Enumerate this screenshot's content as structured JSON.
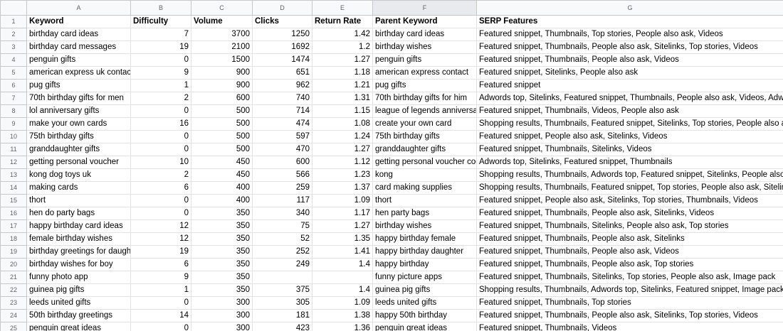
{
  "column_letters": [
    "A",
    "B",
    "C",
    "D",
    "E",
    "F",
    "G"
  ],
  "headers": [
    "Keyword",
    "Difficulty",
    "Volume",
    "Clicks",
    "Return Rate",
    "Parent Keyword",
    "SERP Features"
  ],
  "rows": [
    {
      "row": "2",
      "keyword": "birthday card ideas",
      "difficulty": "7",
      "volume": "3700",
      "clicks": "1250",
      "return_rate": "1.42",
      "parent": "birthday card ideas",
      "serp": "Featured snippet, Thumbnails, Top stories, People also ask, Videos"
    },
    {
      "row": "3",
      "keyword": "birthday card messages",
      "difficulty": "19",
      "volume": "2100",
      "clicks": "1692",
      "return_rate": "1.2",
      "parent": "birthday wishes",
      "serp": "Featured snippet, Thumbnails, People also ask, Sitelinks, Top stories, Videos"
    },
    {
      "row": "4",
      "keyword": "penguin gifts",
      "difficulty": "0",
      "volume": "1500",
      "clicks": "1474",
      "return_rate": "1.27",
      "parent": "penguin gifts",
      "serp": "Featured snippet, Thumbnails, People also ask, Videos"
    },
    {
      "row": "5",
      "keyword": "american express uk contact",
      "difficulty": "9",
      "volume": "900",
      "clicks": "651",
      "return_rate": "1.18",
      "parent": "american express contact",
      "serp": "Featured snippet, Sitelinks, People also ask"
    },
    {
      "row": "6",
      "keyword": "pug gifts",
      "difficulty": "1",
      "volume": "900",
      "clicks": "962",
      "return_rate": "1.21",
      "parent": "pug gifts",
      "serp": "Featured snippet"
    },
    {
      "row": "7",
      "keyword": "70th birthday gifts for men",
      "difficulty": "2",
      "volume": "600",
      "clicks": "740",
      "return_rate": "1.31",
      "parent": "70th birthday gifts for him",
      "serp": "Adwords top, Sitelinks, Featured snippet, Thumbnails, People also ask, Videos, Adwords"
    },
    {
      "row": "8",
      "keyword": "lol anniversary gifts",
      "difficulty": "0",
      "volume": "500",
      "clicks": "714",
      "return_rate": "1.15",
      "parent": "league of legends anniversary",
      "serp": "Featured snippet, Thumbnails, Videos, People also ask"
    },
    {
      "row": "9",
      "keyword": "make your own cards",
      "difficulty": "16",
      "volume": "500",
      "clicks": "474",
      "return_rate": "1.08",
      "parent": "create your own card",
      "serp": "Shopping results, Thumbnails, Featured snippet, Sitelinks, Top stories, People also ask"
    },
    {
      "row": "10",
      "keyword": "75th birthday gifts",
      "difficulty": "0",
      "volume": "500",
      "clicks": "597",
      "return_rate": "1.24",
      "parent": "75th birthday gifts",
      "serp": "Featured snippet, People also ask, Sitelinks, Videos"
    },
    {
      "row": "11",
      "keyword": "granddaughter gifts",
      "difficulty": "0",
      "volume": "500",
      "clicks": "470",
      "return_rate": "1.27",
      "parent": "granddaughter gifts",
      "serp": "Featured snippet, Thumbnails, Sitelinks, Videos"
    },
    {
      "row": "12",
      "keyword": "getting personal voucher",
      "difficulty": "10",
      "volume": "450",
      "clicks": "600",
      "return_rate": "1.12",
      "parent": "getting personal voucher code",
      "serp": "Adwords top, Sitelinks, Featured snippet, Thumbnails"
    },
    {
      "row": "13",
      "keyword": "kong dog toys uk",
      "difficulty": "2",
      "volume": "450",
      "clicks": "566",
      "return_rate": "1.23",
      "parent": "kong",
      "serp": "Shopping results, Thumbnails, Adwords top, Featured snippet, Sitelinks, People also ask"
    },
    {
      "row": "14",
      "keyword": "making cards",
      "difficulty": "6",
      "volume": "400",
      "clicks": "259",
      "return_rate": "1.37",
      "parent": "card making supplies",
      "serp": "Shopping results, Thumbnails, Featured snippet, Top stories, People also ask, Sitelinks, Adwords"
    },
    {
      "row": "15",
      "keyword": "thort",
      "difficulty": "0",
      "volume": "400",
      "clicks": "117",
      "return_rate": "1.09",
      "parent": "thort",
      "serp": "Featured snippet, People also ask, Sitelinks, Top stories, Thumbnails, Videos"
    },
    {
      "row": "16",
      "keyword": "hen do party bags",
      "difficulty": "0",
      "volume": "350",
      "clicks": "340",
      "return_rate": "1.17",
      "parent": "hen party bags",
      "serp": "Featured snippet, Thumbnails, People also ask, Sitelinks, Videos"
    },
    {
      "row": "17",
      "keyword": "happy birthday card ideas",
      "difficulty": "12",
      "volume": "350",
      "clicks": "75",
      "return_rate": "1.27",
      "parent": "birthday wishes",
      "serp": "Featured snippet, Thumbnails, Sitelinks, People also ask, Top stories"
    },
    {
      "row": "18",
      "keyword": "female birthday wishes",
      "difficulty": "12",
      "volume": "350",
      "clicks": "52",
      "return_rate": "1.35",
      "parent": "happy birthday female",
      "serp": "Featured snippet, Thumbnails, People also ask, Sitelinks"
    },
    {
      "row": "19",
      "keyword": "birthday greetings for daughter",
      "difficulty": "19",
      "volume": "350",
      "clicks": "252",
      "return_rate": "1.41",
      "parent": "happy birthday daughter",
      "serp": "Featured snippet, Thumbnails, People also ask, Videos"
    },
    {
      "row": "20",
      "keyword": "birthday wishes for boy",
      "difficulty": "6",
      "volume": "350",
      "clicks": "249",
      "return_rate": "1.4",
      "parent": "happy birthday",
      "serp": "Featured snippet, Thumbnails, People also ask, Top stories"
    },
    {
      "row": "21",
      "keyword": "funny photo app",
      "difficulty": "9",
      "volume": "350",
      "clicks": "",
      "return_rate": "",
      "parent": "funny picture apps",
      "serp": "Featured snippet, Thumbnails, Sitelinks, Top stories, People also ask, Image pack"
    },
    {
      "row": "22",
      "keyword": "guinea pig gifts",
      "difficulty": "1",
      "volume": "350",
      "clicks": "375",
      "return_rate": "1.4",
      "parent": "guinea pig gifts",
      "serp": "Shopping results, Thumbnails, Adwords top, Sitelinks, Featured snippet, Image pack, Top"
    },
    {
      "row": "23",
      "keyword": "leeds united gifts",
      "difficulty": "0",
      "volume": "300",
      "clicks": "305",
      "return_rate": "1.09",
      "parent": "leeds united gifts",
      "serp": "Featured snippet, Thumbnails, Top stories"
    },
    {
      "row": "24",
      "keyword": "50th birthday greetings",
      "difficulty": "14",
      "volume": "300",
      "clicks": "181",
      "return_rate": "1.38",
      "parent": "happy 50th birthday",
      "serp": "Featured snippet, Thumbnails, People also ask, Sitelinks, Top stories, Videos"
    },
    {
      "row": "25",
      "keyword": "penguin great ideas",
      "difficulty": "0",
      "volume": "300",
      "clicks": "423",
      "return_rate": "1.36",
      "parent": "penguin great ideas",
      "serp": "Featured snippet, Thumbnails, Videos"
    }
  ]
}
